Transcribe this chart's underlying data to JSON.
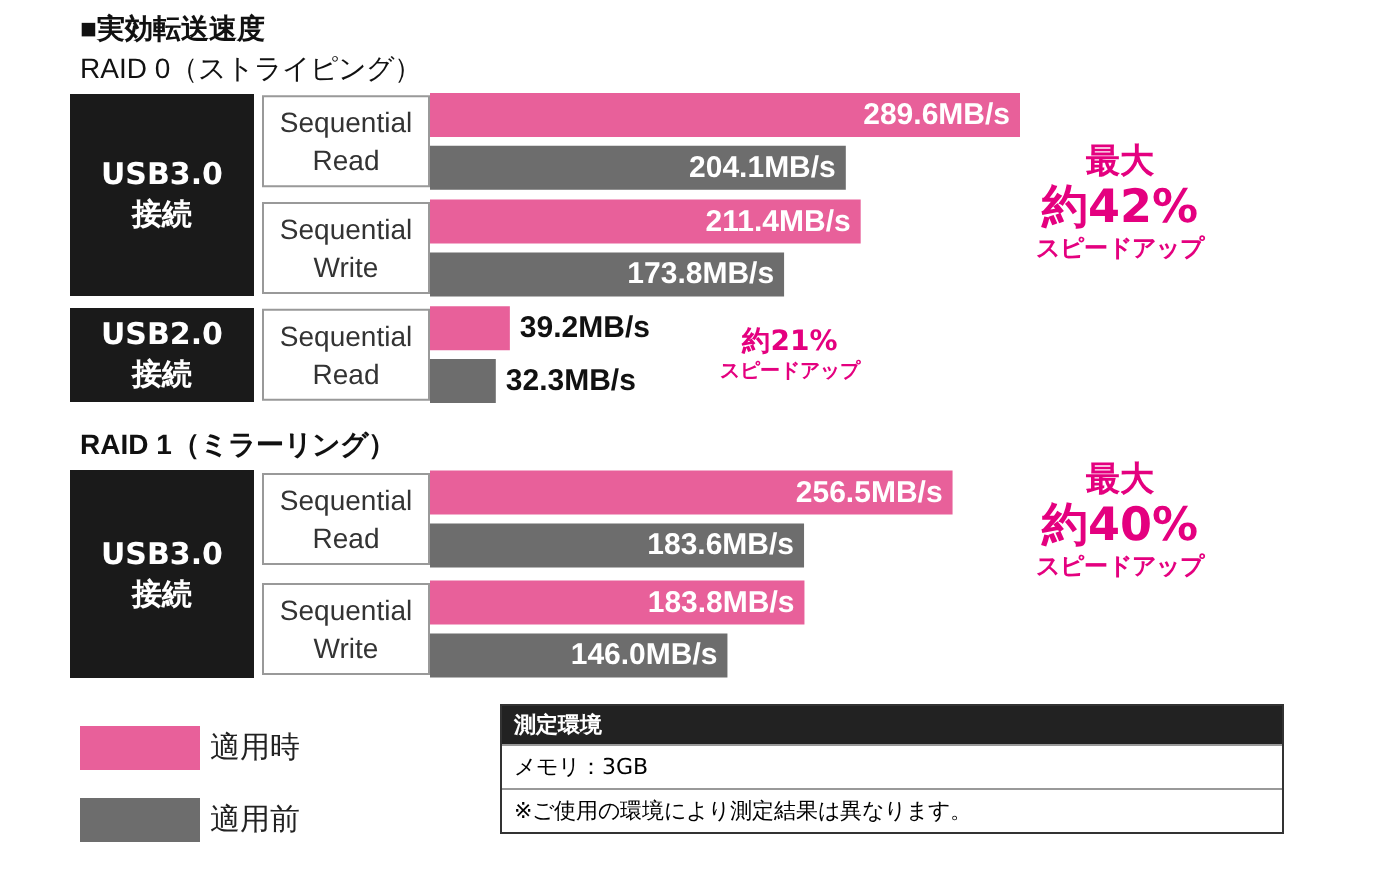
{
  "chart_data": [
    {
      "type": "bar",
      "orientation": "horizontal",
      "title": "■実効転送速度",
      "subtitle": "RAID 0（ストライピング）",
      "categories": [
        "Sequential Read",
        "Sequential Write",
        "Sequential Read"
      ],
      "series": [
        {
          "color": "#e8609a",
          "values": [
            289.6,
            211.4,
            39.2
          ],
          "value_labels": [
            "289.6MB/s",
            "211.4MB/s",
            "39.2MB/s"
          ]
        },
        {
          "color": "#6d6d6d",
          "values": [
            204.1,
            173.8,
            32.3
          ],
          "value_labels": [
            "204.1MB/s",
            "173.8MB/s",
            "32.3MB/s"
          ]
        }
      ],
      "annotations": [
        "USB3.0 接続",
        "USB2.0 接続",
        "最大",
        "約42%",
        "スピードアップ",
        "約21%",
        "スピードアップ"
      ]
    },
    {
      "type": "bar",
      "orientation": "horizontal",
      "title": "RAID 1（ミラーリング）",
      "categories": [
        "Sequential Read",
        "Sequential Write"
      ],
      "series": [
        {
          "name": "適用時",
          "color": "#e8609a",
          "values": [
            256.5,
            183.8
          ],
          "value_labels": [
            "256.5MB/s",
            "183.8MB/s"
          ]
        },
        {
          "name": "適用前",
          "color": "#6d6d6d",
          "values": [
            183.6,
            146.0
          ],
          "value_labels": [
            "183.6MB/s",
            "146.0MB/s"
          ]
        }
      ],
      "annotations": [
        "USB3.0 接続",
        "最大",
        "約40%",
        "スピードアップ"
      ],
      "legend": "bottom left"
    },
    {
      "type": "other",
      "title": "測定環境",
      "annotations": [
        "メモリ：3GB",
        "※ご使用の環境により測定結果は異なります。"
      ]
    }
  ]
}
